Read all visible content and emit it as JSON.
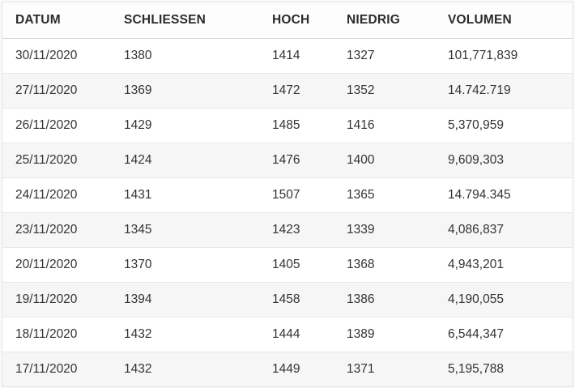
{
  "table": {
    "columns": [
      {
        "key": "datum",
        "label": "DATUM"
      },
      {
        "key": "schliessen",
        "label": "SCHLIESSEN"
      },
      {
        "key": "hoch",
        "label": "HOCH"
      },
      {
        "key": "niedrig",
        "label": "NIEDRIG"
      },
      {
        "key": "volumen",
        "label": "VOLUMEN"
      }
    ],
    "rows": [
      [
        "30/11/2020",
        "1380",
        "1414",
        "1327",
        "101,771,839"
      ],
      [
        "27/11/2020",
        "1369",
        "1472",
        "1352",
        "14.742.719"
      ],
      [
        "26/11/2020",
        "1429",
        "1485",
        "1416",
        "5,370,959"
      ],
      [
        "25/11/2020",
        "1424",
        "1476",
        "1400",
        "9,609,303"
      ],
      [
        "24/11/2020",
        "1431",
        "1507",
        "1365",
        "14.794.345"
      ],
      [
        "23/11/2020",
        "1345",
        "1423",
        "1339",
        "4,086,837"
      ],
      [
        "20/11/2020",
        "1370",
        "1405",
        "1368",
        "4,943,201"
      ],
      [
        "19/11/2020",
        "1394",
        "1458",
        "1386",
        "4,190,055"
      ],
      [
        "18/11/2020",
        "1432",
        "1444",
        "1389",
        "6,544,347"
      ],
      [
        "17/11/2020",
        "1432",
        "1449",
        "1371",
        "5,195,788"
      ]
    ]
  },
  "chart_data": {
    "type": "table",
    "title": "",
    "columns": [
      "DATUM",
      "SCHLIESSEN",
      "HOCH",
      "NIEDRIG",
      "VOLUMEN"
    ],
    "rows": [
      {
        "datum": "30/11/2020",
        "schliessen": 1380,
        "hoch": 1414,
        "niedrig": 1327,
        "volumen": "101,771,839"
      },
      {
        "datum": "27/11/2020",
        "schliessen": 1369,
        "hoch": 1472,
        "niedrig": 1352,
        "volumen": "14.742.719"
      },
      {
        "datum": "26/11/2020",
        "schliessen": 1429,
        "hoch": 1485,
        "niedrig": 1416,
        "volumen": "5,370,959"
      },
      {
        "datum": "25/11/2020",
        "schliessen": 1424,
        "hoch": 1476,
        "niedrig": 1400,
        "volumen": "9,609,303"
      },
      {
        "datum": "24/11/2020",
        "schliessen": 1431,
        "hoch": 1507,
        "niedrig": 1365,
        "volumen": "14.794.345"
      },
      {
        "datum": "23/11/2020",
        "schliessen": 1345,
        "hoch": 1423,
        "niedrig": 1339,
        "volumen": "4,086,837"
      },
      {
        "datum": "20/11/2020",
        "schliessen": 1370,
        "hoch": 1405,
        "niedrig": 1368,
        "volumen": "4,943,201"
      },
      {
        "datum": "19/11/2020",
        "schliessen": 1394,
        "hoch": 1458,
        "niedrig": 1386,
        "volumen": "4,190,055"
      },
      {
        "datum": "18/11/2020",
        "schliessen": 1432,
        "hoch": 1444,
        "niedrig": 1389,
        "volumen": "6,544,347"
      },
      {
        "datum": "17/11/2020",
        "schliessen": 1432,
        "hoch": 1449,
        "niedrig": 1371,
        "volumen": "5,195,788"
      }
    ]
  },
  "colors": {
    "header_text": "#2b2b2b",
    "cell_text": "#333333",
    "alt_row_bg": "#f6f6f7",
    "row_bg": "#ffffff",
    "border": "#e2e2e2",
    "separator": "#e8e8e8"
  }
}
